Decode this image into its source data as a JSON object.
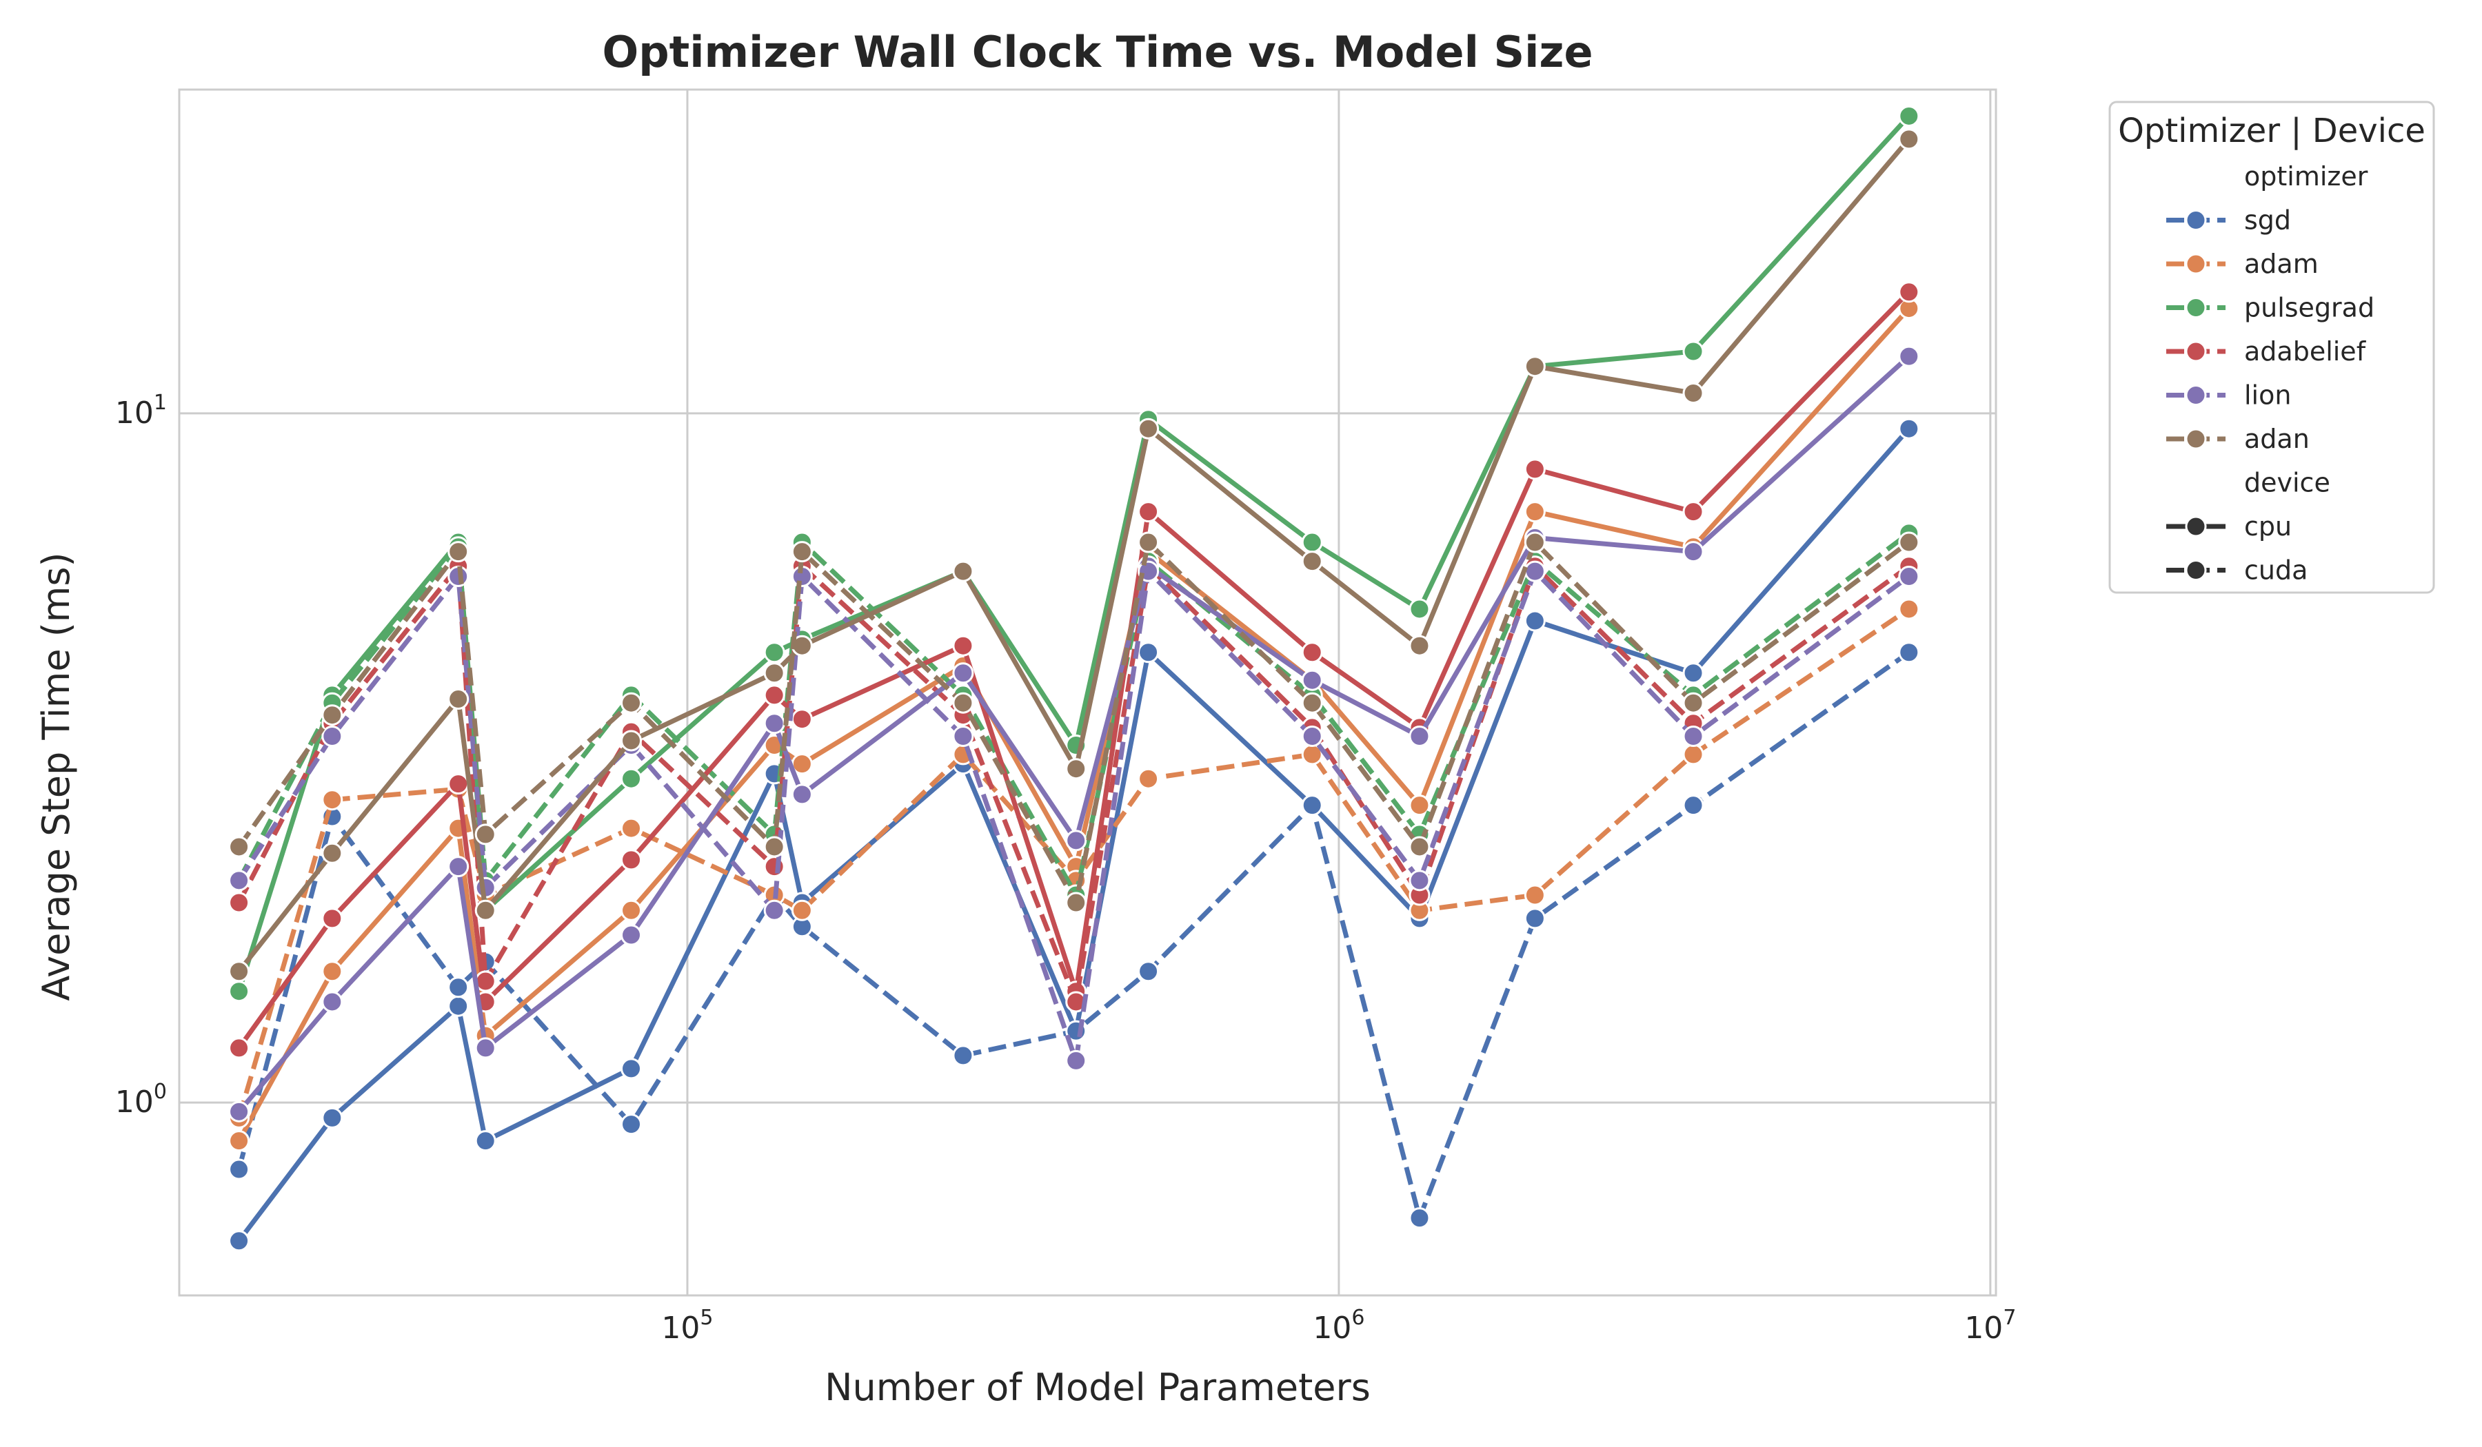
{
  "chart_data": {
    "type": "line",
    "title": "Optimizer Wall Clock Time vs. Model Size",
    "xlabel": "Number of Model Parameters",
    "ylabel": "Average Step Time (ms)",
    "xscale": "log",
    "yscale": "log",
    "xlim": [
      16600,
      10200000
    ],
    "ylim": [
      0.525,
      14500
    ],
    "ylim_note": "",
    "y_range": [
      0.525,
      29.5
    ],
    "x_ticks": [
      {
        "base": "10",
        "exp": "5",
        "value": 100000
      },
      {
        "base": "10",
        "exp": "6",
        "value": 1000000
      },
      {
        "base": "10",
        "exp": "7",
        "value": 10000000
      }
    ],
    "y_ticks": [
      {
        "base": "10",
        "exp": "0",
        "value": 1
      },
      {
        "base": "10",
        "exp": "1",
        "value": 10
      }
    ],
    "grid": true,
    "legend": {
      "title": "Optimizer | Device",
      "placement": "outside-right",
      "optimizer_header": "optimizer",
      "device_header": "device",
      "devices": [
        {
          "name": "cpu",
          "style": "solid"
        },
        {
          "name": "cuda",
          "style": "dashed"
        }
      ]
    },
    "x": [
      20500,
      28500,
      44500,
      49000,
      82000,
      136000,
      150000,
      265000,
      395000,
      510000,
      910000,
      1330000,
      2000000,
      3500000,
      7500000
    ],
    "series": [
      {
        "name": "sgd",
        "color": "#4c72b0",
        "device": "cpu",
        "values": [
          0.63,
          0.95,
          1.38,
          0.88,
          1.12,
          3.0,
          1.95,
          3.1,
          1.27,
          4.5,
          2.7,
          1.85,
          5.0,
          4.2,
          9.5
        ]
      },
      {
        "name": "sgd",
        "color": "#4c72b0",
        "device": "cuda",
        "values": [
          0.8,
          2.6,
          1.47,
          1.6,
          0.93,
          2.0,
          1.8,
          1.17,
          1.27,
          1.55,
          2.7,
          0.68,
          1.85,
          2.7,
          4.5
        ]
      },
      {
        "name": "adam",
        "color": "#dd8452",
        "device": "cpu",
        "values": [
          0.88,
          1.55,
          2.5,
          1.25,
          1.9,
          3.3,
          3.1,
          4.3,
          2.2,
          6.3,
          4.1,
          2.7,
          7.2,
          6.4,
          14.2
        ]
      },
      {
        "name": "adam",
        "color": "#dd8452",
        "device": "cuda",
        "values": [
          0.95,
          2.75,
          2.85,
          2.0,
          2.5,
          2.0,
          1.9,
          3.2,
          2.1,
          2.95,
          3.2,
          1.9,
          2.0,
          3.2,
          5.2
        ]
      },
      {
        "name": "pulsegrad",
        "color": "#55a868",
        "device": "cpu",
        "values": [
          1.45,
          3.9,
          6.5,
          1.9,
          2.95,
          4.5,
          4.7,
          5.9,
          3.3,
          9.8,
          6.5,
          5.2,
          11.7,
          12.3,
          27.0
        ]
      },
      {
        "name": "pulsegrad",
        "color": "#55a868",
        "device": "cuda",
        "values": [
          2.1,
          3.8,
          6.4,
          2.1,
          3.9,
          2.45,
          6.5,
          3.9,
          2.0,
          6.1,
          3.9,
          2.45,
          6.1,
          3.9,
          6.7
        ]
      },
      {
        "name": "adabelief",
        "color": "#c44e52",
        "device": "cpu",
        "values": [
          1.2,
          1.85,
          2.9,
          1.4,
          2.25,
          3.9,
          3.6,
          4.6,
          1.45,
          7.2,
          4.5,
          3.5,
          8.3,
          7.2,
          15.0
        ]
      },
      {
        "name": "adabelief",
        "color": "#c44e52",
        "device": "cuda",
        "values": [
          1.95,
          3.55,
          6.0,
          1.5,
          3.45,
          2.2,
          6.0,
          3.65,
          1.4,
          6.0,
          3.5,
          2.0,
          6.0,
          3.55,
          6.0
        ]
      },
      {
        "name": "lion",
        "color": "#8172b3",
        "device": "cpu",
        "values": [
          0.97,
          1.4,
          2.2,
          1.2,
          1.75,
          3.55,
          2.8,
          4.2,
          2.4,
          6.0,
          4.1,
          3.4,
          6.6,
          6.3,
          12.1
        ]
      },
      {
        "name": "lion",
        "color": "#8172b3",
        "device": "cuda",
        "values": [
          2.1,
          3.4,
          5.8,
          2.05,
          3.3,
          1.9,
          5.8,
          3.4,
          1.15,
          5.9,
          3.4,
          2.1,
          5.9,
          3.4,
          5.8
        ]
      },
      {
        "name": "adan",
        "color": "#937860",
        "device": "cpu",
        "values": [
          1.55,
          2.3,
          3.85,
          1.9,
          3.35,
          4.2,
          4.6,
          5.9,
          3.05,
          9.5,
          6.1,
          4.6,
          11.7,
          10.7,
          25.0
        ]
      },
      {
        "name": "adan",
        "color": "#937860",
        "device": "cuda",
        "values": [
          2.35,
          3.65,
          6.3,
          2.45,
          3.8,
          2.35,
          6.3,
          3.8,
          1.95,
          6.5,
          3.8,
          2.35,
          6.5,
          3.8,
          6.5
        ]
      }
    ]
  }
}
